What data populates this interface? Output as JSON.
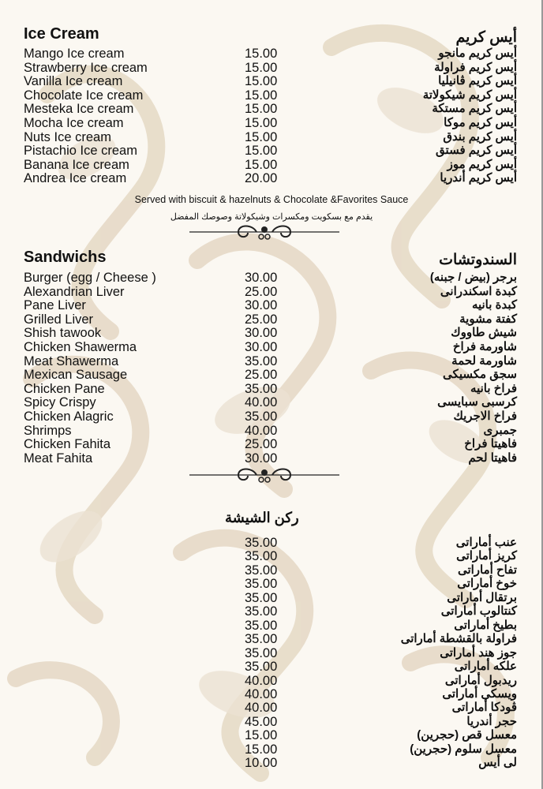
{
  "colors": {
    "background": "#fbf8f2",
    "pattern": "#e6dac7",
    "text": "#111111"
  },
  "ice_cream": {
    "title_en": "Ice Cream",
    "title_ar": "أيس كريم",
    "items": [
      {
        "en": "Mango Ice cream",
        "price": "15.00",
        "ar": "أيس كريم مانجو"
      },
      {
        "en": "Strawberry Ice cream",
        "price": "15.00",
        "ar": "أيس كريم فراولة"
      },
      {
        "en": "Vanilla Ice cream",
        "price": "15.00",
        "ar": "أيس كريم ڤانيليا"
      },
      {
        "en": "Chocolate Ice cream",
        "price": "15.00",
        "ar": "أيس كريم شيكولاتة"
      },
      {
        "en": "Mesteka Ice cream",
        "price": "15.00",
        "ar": "أيس كريم مستكة"
      },
      {
        "en": "Mocha Ice cream",
        "price": "15.00",
        "ar": "أيس كريم موكا"
      },
      {
        "en": "Nuts Ice cream",
        "price": "15.00",
        "ar": "أيس كريم بندق"
      },
      {
        "en": "Pistachio Ice cream",
        "price": "15.00",
        "ar": "أيس كريم فستق"
      },
      {
        "en": "Banana Ice cream",
        "price": "15.00",
        "ar": "أيس كريم موز"
      },
      {
        "en": "Andrea Ice cream",
        "price": "20.00",
        "ar": "أيس كريم أندريا"
      }
    ],
    "note_en": "Served with biscuit & hazelnuts & Chocolate &Favorites Sauce",
    "note_ar": "يقدم مع بسكويت ومكسرات وشيكولاتة وصوصك المفضل"
  },
  "sandwiches": {
    "title_en": "Sandwichs",
    "title_ar": "السندوتشات",
    "items": [
      {
        "en": "Burger (egg / Cheese )",
        "price": "30.00",
        "ar": "برجر (بيض / جبنه)"
      },
      {
        "en": "Alexandrian Liver",
        "price": "25.00",
        "ar": "كبدة اسكندرانى"
      },
      {
        "en": "Pane Liver",
        "price": "30.00",
        "ar": "كبدة بانيه"
      },
      {
        "en": "Grilled Liver",
        "price": "25.00",
        "ar": "كفتة مشوية"
      },
      {
        "en": "Shish tawook",
        "price": "30.00",
        "ar": "شيش طاووك"
      },
      {
        "en": "Chicken Shawerma",
        "price": "30.00",
        "ar": "شاورمة فراخ"
      },
      {
        "en": "Meat Shawerma",
        "price": "35.00",
        "ar": "شاورمة لحمة"
      },
      {
        "en": "Mexican Sausage",
        "price": "25.00",
        "ar": "سجق مكسيكى"
      },
      {
        "en": "Chicken Pane",
        "price": "35.00",
        "ar": "فراخ بانيه"
      },
      {
        "en": "Spicy Crispy",
        "price": "40.00",
        "ar": "كرسبى سبايسى"
      },
      {
        "en": "Chicken Alagric",
        "price": "35.00",
        "ar": "فراخ الاجريك"
      },
      {
        "en": "Shrimps",
        "price": "40.00",
        "ar": "جمبرى"
      },
      {
        "en": "Chicken Fahita",
        "price": "25.00",
        "ar": "فاهيتا فراخ"
      },
      {
        "en": "Meat Fahita",
        "price": "30.00",
        "ar": "فاهيتا لحم"
      }
    ]
  },
  "shisha": {
    "title_ar": "ركن الشيشة",
    "items": [
      {
        "price": "35.00",
        "ar": "عنب أماراتى"
      },
      {
        "price": "35.00",
        "ar": "كريز أماراتى"
      },
      {
        "price": "35.00",
        "ar": "تفاح أماراتى"
      },
      {
        "price": "35.00",
        "ar": "خوخ أماراتى"
      },
      {
        "price": "35.00",
        "ar": "برتقال أماراتى"
      },
      {
        "price": "35.00",
        "ar": "كنتالوب أماراتى"
      },
      {
        "price": "35.00",
        "ar": "بطيخ أماراتى"
      },
      {
        "price": "35.00",
        "ar": "فراولة بالقشطة أماراتى"
      },
      {
        "price": "35.00",
        "ar": "جوز هند أماراتى"
      },
      {
        "price": "35.00",
        "ar": "علكه أماراتى"
      },
      {
        "price": "40.00",
        "ar": "ريدبول أماراتى"
      },
      {
        "price": "40.00",
        "ar": "ويسكى أماراتى"
      },
      {
        "price": "40.00",
        "ar": "ڤودكا أماراتى"
      },
      {
        "price": "45.00",
        "ar": "حجر أندريا"
      },
      {
        "price": "15.00",
        "ar": "معسل قص (حجرين)"
      },
      {
        "price": "15.00",
        "ar": "معسل سلوم (حجرين)"
      },
      {
        "price": "10.00",
        "ar": "لى أيس"
      }
    ]
  }
}
